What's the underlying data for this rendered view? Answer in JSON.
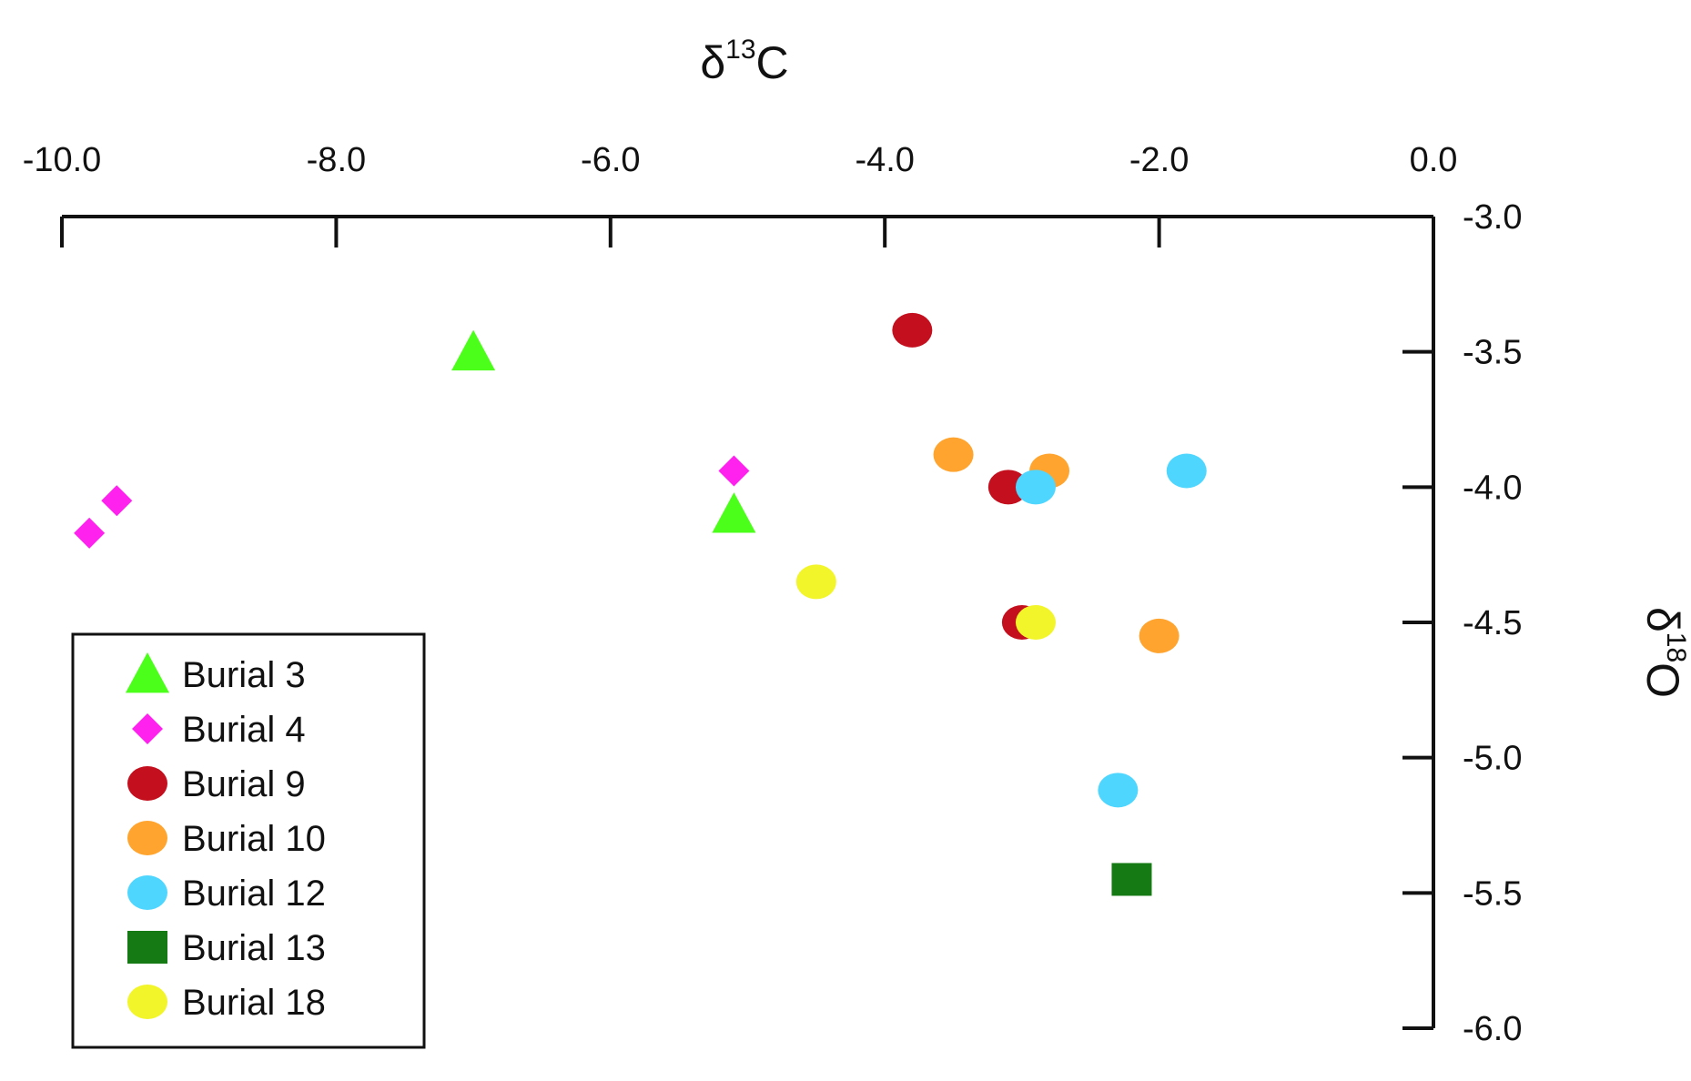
{
  "chart_data": {
    "type": "scatter",
    "x_axis": {
      "title": "δ",
      "title_sup": "13",
      "title_suffix": "C",
      "position": "top",
      "range": [
        -10.0,
        0.0
      ],
      "ticks": [
        "-10.0",
        "-8.0",
        "-6.0",
        "-4.0",
        "-2.0",
        "0.0"
      ],
      "tick_values": [
        -10.0,
        -8.0,
        -6.0,
        -4.0,
        -2.0,
        0.0
      ]
    },
    "y_axis": {
      "title": "δ",
      "title_sup": "18",
      "title_suffix": "O",
      "position": "right",
      "range": [
        -6.0,
        -3.0
      ],
      "ticks": [
        "-3.0",
        "-3.5",
        "-4.0",
        "-4.5",
        "-5.0",
        "-5.5",
        "-6.0"
      ],
      "tick_values": [
        -3.0,
        -3.5,
        -4.0,
        -4.5,
        -5.0,
        -5.5,
        -6.0
      ]
    },
    "grid": false,
    "legend_position": "bottom-left",
    "series": [
      {
        "name": "Burial 3",
        "marker": "triangle",
        "color": "#4cff1a",
        "points": [
          {
            "x": -7.0,
            "y": -3.5
          },
          {
            "x": -5.1,
            "y": -4.1
          }
        ]
      },
      {
        "name": "Burial 4",
        "marker": "diamond",
        "color": "#ff22ee",
        "points": [
          {
            "x": -9.6,
            "y": -4.05
          },
          {
            "x": -9.8,
            "y": -4.17
          },
          {
            "x": -5.1,
            "y": -3.94
          }
        ]
      },
      {
        "name": "Burial 9",
        "marker": "circle",
        "color": "#c4101e",
        "points": [
          {
            "x": -3.8,
            "y": -3.42
          },
          {
            "x": -3.1,
            "y": -4.0
          },
          {
            "x": -3.0,
            "y": -4.5
          }
        ]
      },
      {
        "name": "Burial 10",
        "marker": "circle",
        "color": "#ffa42e",
        "points": [
          {
            "x": -3.5,
            "y": -3.88
          },
          {
            "x": -2.8,
            "y": -3.94
          },
          {
            "x": -2.0,
            "y": -4.55
          }
        ]
      },
      {
        "name": "Burial 12",
        "marker": "circle",
        "color": "#4fd6ff",
        "points": [
          {
            "x": -2.9,
            "y": -4.0
          },
          {
            "x": -1.8,
            "y": -3.94
          },
          {
            "x": -2.3,
            "y": -5.12
          }
        ]
      },
      {
        "name": "Burial 13",
        "marker": "square",
        "color": "#167a14",
        "points": [
          {
            "x": -2.2,
            "y": -5.45
          }
        ]
      },
      {
        "name": "Burial 18",
        "marker": "circle",
        "color": "#f2f52a",
        "points": [
          {
            "x": -4.5,
            "y": -4.35
          },
          {
            "x": -2.9,
            "y": -4.5
          }
        ]
      }
    ]
  }
}
